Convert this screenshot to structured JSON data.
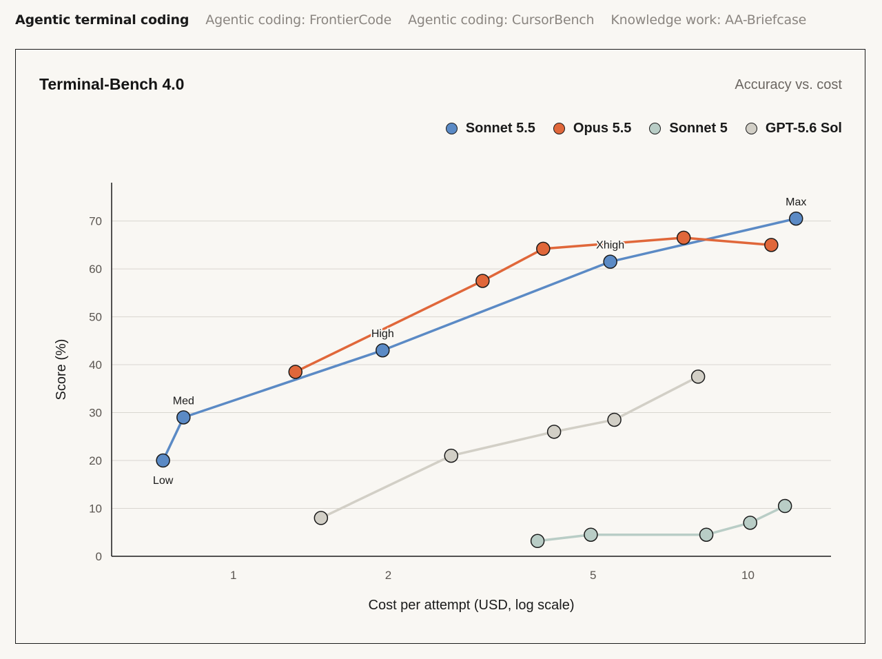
{
  "tabs": [
    {
      "label": "Agentic terminal coding",
      "active": true
    },
    {
      "label": "Agentic coding: FrontierCode",
      "active": false
    },
    {
      "label": "Agentic coding: CursorBench",
      "active": false
    },
    {
      "label": "Knowledge work: AA-Briefcase",
      "active": false
    }
  ],
  "card": {
    "title": "Terminal-Bench 4.0",
    "subtitle": "Accuracy vs. cost"
  },
  "chart_data": {
    "type": "line",
    "title": "Terminal-Bench 4.0",
    "subtitle": "Accuracy vs. cost",
    "xlabel": "Cost per attempt (USD, log scale)",
    "ylabel": "Score (%)",
    "xscale": "log",
    "xlim": [
      0.58,
      14.5
    ],
    "ylim": [
      0,
      78
    ],
    "xticks": [
      1,
      2,
      5,
      10
    ],
    "yticks": [
      0,
      10,
      20,
      30,
      40,
      50,
      60,
      70
    ],
    "grid": "horizontal",
    "legend_position": "top-right",
    "series": [
      {
        "name": "Sonnet 5.5",
        "color": "#5b8ac5",
        "points": [
          {
            "x": 0.73,
            "y": 20,
            "label": "Low"
          },
          {
            "x": 0.8,
            "y": 29,
            "label": "Med"
          },
          {
            "x": 1.95,
            "y": 43,
            "label": "High"
          },
          {
            "x": 5.4,
            "y": 61.5,
            "label": "Xhigh"
          },
          {
            "x": 12.4,
            "y": 70.5,
            "label": "Max"
          }
        ]
      },
      {
        "name": "Opus 5.5",
        "color": "#e0673a",
        "points": [
          {
            "x": 1.32,
            "y": 38.5
          },
          {
            "x": 3.05,
            "y": 57.5
          },
          {
            "x": 4.0,
            "y": 64.2
          },
          {
            "x": 7.5,
            "y": 66.5
          },
          {
            "x": 11.1,
            "y": 65
          }
        ]
      },
      {
        "name": "Sonnet 5",
        "color": "#b9cdc6",
        "points": [
          {
            "x": 3.9,
            "y": 3.2
          },
          {
            "x": 4.95,
            "y": 4.5
          },
          {
            "x": 8.3,
            "y": 4.5
          },
          {
            "x": 10.1,
            "y": 7
          },
          {
            "x": 11.8,
            "y": 10.5
          }
        ]
      },
      {
        "name": "GPT-5.6 Sol",
        "color": "#d2cfc6",
        "points": [
          {
            "x": 1.48,
            "y": 8
          },
          {
            "x": 2.65,
            "y": 21
          },
          {
            "x": 4.2,
            "y": 26
          },
          {
            "x": 5.5,
            "y": 28.5
          },
          {
            "x": 8.0,
            "y": 37.5
          }
        ]
      }
    ]
  }
}
